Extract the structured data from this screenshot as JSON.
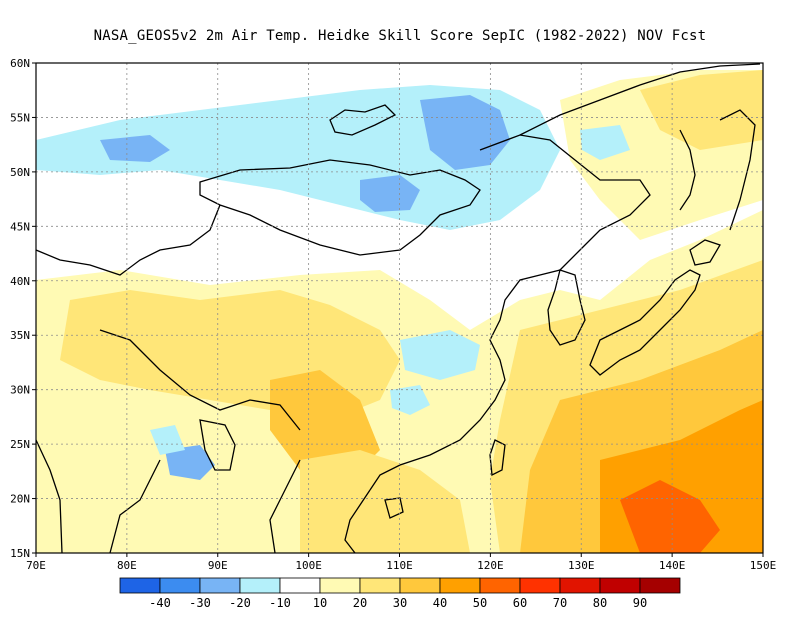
{
  "title": "NASA_GEOS5v2  2m Air Temp. Heidke Skill Score SepIC (1982-2022) NOV Fcst",
  "map": {
    "region": "East Asia",
    "lon_range": [
      70,
      150
    ],
    "lat_range": [
      15,
      60
    ],
    "lon_ticks": [
      "70E",
      "80E",
      "90E",
      "100E",
      "110E",
      "120E",
      "130E",
      "140E",
      "150E"
    ],
    "lat_ticks": [
      "15N",
      "20N",
      "25N",
      "30N",
      "35N",
      "40N",
      "45N",
      "50N",
      "55N",
      "60N"
    ],
    "grid": true
  },
  "colorbar": {
    "labels": [
      "-40",
      "-30",
      "-20",
      "-10",
      "10",
      "20",
      "30",
      "40",
      "50",
      "60",
      "70",
      "80",
      "90"
    ],
    "colors": [
      "#1e64e6",
      "#3c8cf0",
      "#78b4f5",
      "#b4f0fa",
      "#ffffff",
      "#fffab4",
      "#ffe678",
      "#ffc83c",
      "#ffa000",
      "#ff6400",
      "#ff3200",
      "#e11400",
      "#c00000",
      "#a50000"
    ]
  },
  "colors": {
    "coast": "#000000",
    "grid": "#8c8c8c"
  }
}
